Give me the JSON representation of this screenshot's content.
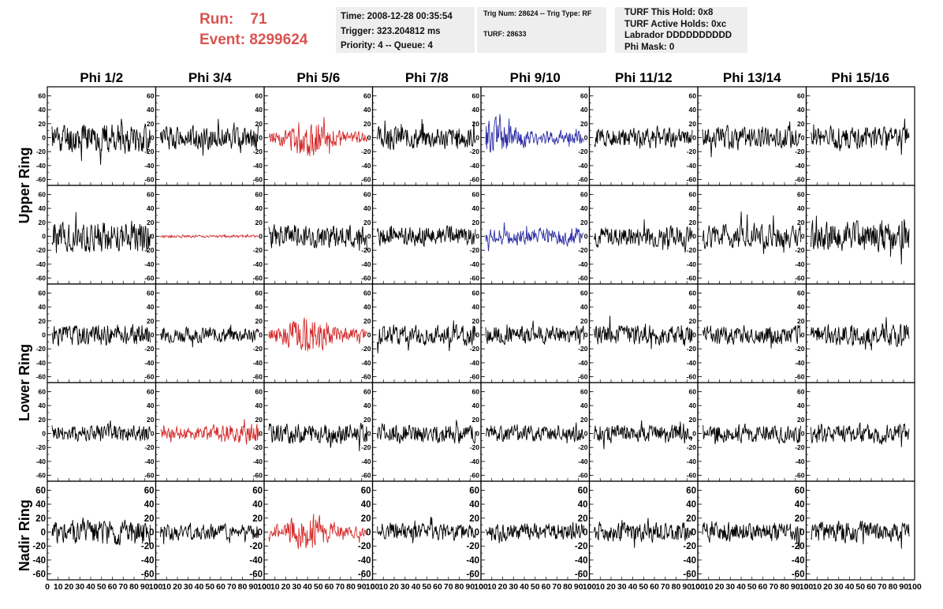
{
  "header": {
    "run_label": "Run:",
    "run_value": "71",
    "event_label": "Event:",
    "event_value": "8299624",
    "info": {
      "time": "Time: 2008-12-28 00:35:54",
      "trigger": "Trigger: 323.204812 ms",
      "priority": "Priority: 4 -- Queue: 4",
      "trig": "Trig Num: 28624 -- Trig Type: RF",
      "turf": "TURF: 28633",
      "hold": "TURF This Hold: 0x8",
      "active": "TURF Active Holds: 0xc",
      "labrador": "Labrador DDDDDDDDDD",
      "phimask": "Phi Mask: 0"
    }
  },
  "colors": {
    "run_text": "#d9534f",
    "info_bg": "#eeeeee",
    "trace_default": "#000000",
    "trace_red": "#d42b2b",
    "trace_blue": "#2b2ba5"
  },
  "chart_data": {
    "type": "line",
    "columns": [
      "Phi 1/2",
      "Phi 3/4",
      "Phi 5/6",
      "Phi 7/8",
      "Phi 9/10",
      "Phi 11/12",
      "Phi 13/14",
      "Phi 15/16"
    ],
    "row_labels": [
      "Upper Ring",
      "Lower Ring",
      "Nadir Ring"
    ],
    "xlim": [
      0,
      100
    ],
    "ylim": [
      -65,
      65
    ],
    "y_ticks": [
      60,
      40,
      20,
      0,
      -20,
      -40,
      -60
    ],
    "x_ticks_text": [
      "0",
      "10",
      "20",
      "30",
      "40",
      "50",
      "60",
      "70",
      "80",
      "90",
      "100"
    ],
    "rows": [
      [
        {
          "color": "black",
          "amp": 22,
          "seed": 11
        },
        {
          "color": "black",
          "amp": 17,
          "seed": 12
        },
        {
          "color": "red",
          "amp": 22,
          "env": "burst",
          "seed": 13
        },
        {
          "color": "black",
          "amp": 16,
          "seed": 14
        },
        {
          "color": "blue",
          "amp": 22,
          "env": "early",
          "seed": 15
        },
        {
          "color": "black",
          "amp": 14,
          "seed": 16
        },
        {
          "color": "black",
          "amp": 16,
          "seed": 17
        },
        {
          "color": "black",
          "amp": 16,
          "seed": 18
        }
      ],
      [
        {
          "color": "black",
          "amp": 22,
          "seed": 21
        },
        {
          "color": "red",
          "amp": 2,
          "seed": 22
        },
        {
          "color": "black",
          "amp": 17,
          "seed": 23
        },
        {
          "color": "black",
          "amp": 14,
          "seed": 24
        },
        {
          "color": "blue",
          "amp": 12,
          "seed": 25
        },
        {
          "color": "black",
          "amp": 15,
          "seed": 26
        },
        {
          "color": "black",
          "amp": 18,
          "seed": 27
        },
        {
          "color": "black",
          "amp": 22,
          "seed": 28
        }
      ],
      [
        {
          "color": "black",
          "amp": 15,
          "seed": 31
        },
        {
          "color": "black",
          "amp": 11,
          "seed": 32
        },
        {
          "color": "red",
          "amp": 25,
          "env": "burst",
          "seed": 33
        },
        {
          "color": "black",
          "amp": 15,
          "seed": 34
        },
        {
          "color": "black",
          "amp": 13,
          "seed": 35
        },
        {
          "color": "black",
          "amp": 15,
          "seed": 36
        },
        {
          "color": "black",
          "amp": 14,
          "seed": 37
        },
        {
          "color": "black",
          "amp": 15,
          "seed": 38
        }
      ],
      [
        {
          "color": "black",
          "amp": 13,
          "seed": 41
        },
        {
          "color": "red",
          "amp": 14,
          "env": "rise",
          "seed": 42
        },
        {
          "color": "black",
          "amp": 15,
          "seed": 43
        },
        {
          "color": "black",
          "amp": 14,
          "seed": 44
        },
        {
          "color": "black",
          "amp": 12,
          "seed": 45
        },
        {
          "color": "black",
          "amp": 13,
          "seed": 46
        },
        {
          "color": "black",
          "amp": 13,
          "seed": 47
        },
        {
          "color": "black",
          "amp": 15,
          "seed": 48
        }
      ],
      [
        {
          "color": "black",
          "amp": 18,
          "seed": 51
        },
        {
          "color": "black",
          "amp": 12,
          "seed": 52
        },
        {
          "color": "red",
          "amp": 22,
          "env": "burst",
          "seed": 53
        },
        {
          "color": "black",
          "amp": 13,
          "seed": 54
        },
        {
          "color": "black",
          "amp": 12,
          "seed": 55
        },
        {
          "color": "black",
          "amp": 14,
          "seed": 56
        },
        {
          "color": "black",
          "amp": 14,
          "seed": 57
        },
        {
          "color": "black",
          "amp": 15,
          "seed": 58
        }
      ]
    ]
  }
}
